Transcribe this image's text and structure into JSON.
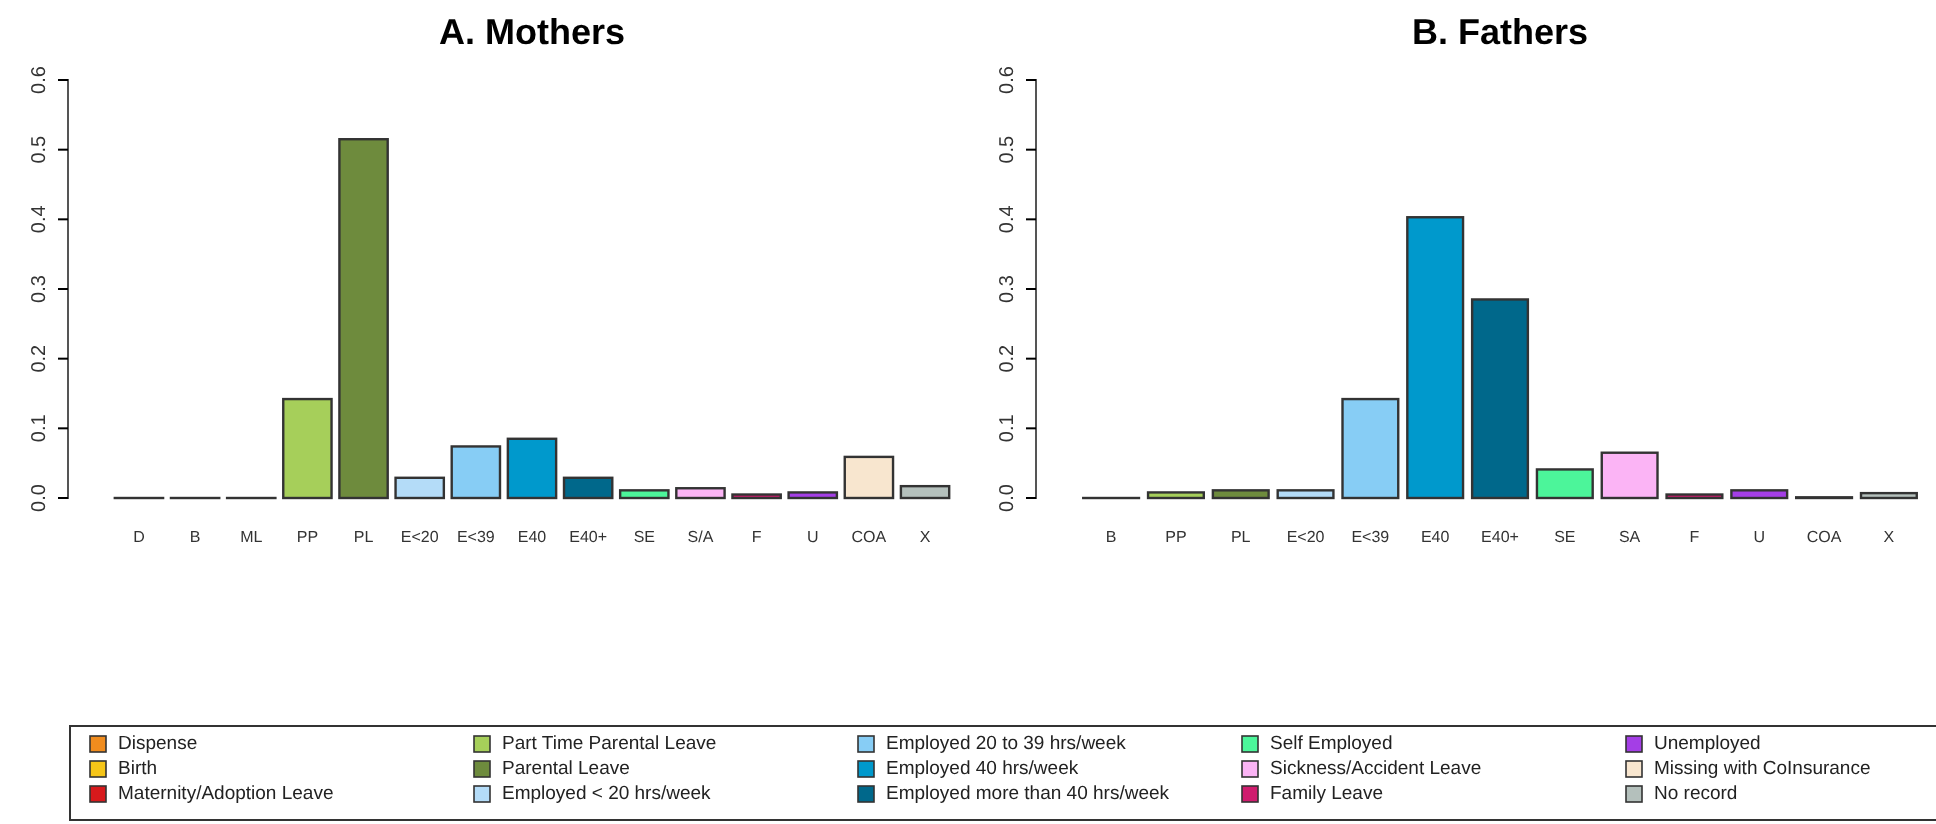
{
  "chart_data": [
    {
      "type": "bar",
      "title": "A. Mothers",
      "categories": [
        "D",
        "B",
        "ML",
        "PP",
        "PL",
        "E<20",
        "E<39",
        "E40",
        "E40+",
        "SE",
        "S/A",
        "F",
        "U",
        "COA",
        "X"
      ],
      "stacked": true,
      "legend": "bottom",
      "ylim": [
        0,
        0.6
      ],
      "yticks": [
        {
          "value": 0,
          "label": "0.0"
        },
        {
          "value": 0.1,
          "label": "0.1"
        },
        {
          "value": 0.2,
          "label": "0.2"
        },
        {
          "value": 0.3,
          "label": "0.3"
        },
        {
          "value": 0.4,
          "label": "0.4"
        },
        {
          "value": 0.5,
          "label": "0.5"
        },
        {
          "value": 0.6,
          "label": "0.6"
        }
      ],
      "grid": false,
      "series": [
        {
          "name": "Dispense",
          "color": "#f08c1e",
          "values": [
            0,
            null,
            null,
            null,
            null,
            null,
            null,
            null,
            null,
            null,
            null,
            null,
            null,
            null,
            null
          ]
        },
        {
          "name": "Birth",
          "color": "#f5c518",
          "values": [
            null,
            0,
            null,
            null,
            null,
            null,
            null,
            null,
            null,
            null,
            null,
            null,
            null,
            null,
            null
          ]
        },
        {
          "name": "Maternity/Adoption Leave",
          "color": "#d7191c",
          "values": [
            null,
            null,
            0,
            null,
            null,
            null,
            null,
            null,
            null,
            null,
            null,
            null,
            null,
            null,
            null
          ]
        },
        {
          "name": "Part Time Parental Leave",
          "color": "#a6cf5a",
          "values": [
            null,
            null,
            null,
            0.142,
            null,
            null,
            null,
            null,
            null,
            null,
            null,
            null,
            null,
            null,
            null
          ]
        },
        {
          "name": "Parental Leave",
          "color": "#6e8b3d",
          "values": [
            null,
            null,
            null,
            null,
            0.515,
            null,
            null,
            null,
            null,
            null,
            null,
            null,
            null,
            null,
            null
          ]
        },
        {
          "name": "Employed < 20 hrs/week",
          "color": "#b4dcf8",
          "values": [
            null,
            null,
            null,
            null,
            null,
            0.029,
            null,
            null,
            null,
            null,
            null,
            null,
            null,
            null,
            null
          ]
        },
        {
          "name": "Employed 20 to 39 hrs/week",
          "color": "#87cdf5",
          "values": [
            null,
            null,
            null,
            null,
            null,
            null,
            0.074,
            null,
            null,
            null,
            null,
            null,
            null,
            null,
            null
          ]
        },
        {
          "name": "Employed 40 hrs/week",
          "color": "#0099cc",
          "values": [
            null,
            null,
            null,
            null,
            null,
            null,
            null,
            0.085,
            null,
            null,
            null,
            null,
            null,
            null,
            null
          ]
        },
        {
          "name": "Employed more than 40 hrs/week",
          "color": "#00688b",
          "values": [
            null,
            null,
            null,
            null,
            null,
            null,
            null,
            null,
            0.029,
            null,
            null,
            null,
            null,
            null,
            null
          ]
        },
        {
          "name": "Self Employed",
          "color": "#4cf59a",
          "values": [
            null,
            null,
            null,
            null,
            null,
            null,
            null,
            null,
            null,
            0.011,
            null,
            null,
            null,
            null,
            null
          ]
        },
        {
          "name": "Sickness/Accident Leave",
          "color": "#fbb4f5",
          "values": [
            null,
            null,
            null,
            null,
            null,
            null,
            null,
            null,
            null,
            null,
            0.014,
            null,
            null,
            null,
            null
          ]
        },
        {
          "name": "Family Leave",
          "color": "#d01c6e",
          "values": [
            null,
            null,
            null,
            null,
            null,
            null,
            null,
            null,
            null,
            null,
            null,
            0.005,
            null,
            null,
            null
          ]
        },
        {
          "name": "Unemployed",
          "color": "#a43ee6",
          "values": [
            null,
            null,
            null,
            null,
            null,
            null,
            null,
            null,
            null,
            null,
            null,
            null,
            0.008,
            null,
            null
          ]
        },
        {
          "name": "Missing with CoInsurance",
          "color": "#f8e6cf",
          "values": [
            null,
            null,
            null,
            null,
            null,
            null,
            null,
            null,
            null,
            null,
            null,
            null,
            null,
            0.059,
            null
          ]
        },
        {
          "name": "No record",
          "color": "#b4c0bc",
          "values": [
            null,
            null,
            null,
            null,
            null,
            null,
            null,
            null,
            null,
            null,
            null,
            null,
            null,
            null,
            0.017
          ]
        }
      ]
    },
    {
      "type": "bar",
      "title": "B. Fathers",
      "categories": [
        "B",
        "PP",
        "PL",
        "E<20",
        "E<39",
        "E40",
        "E40+",
        "SE",
        "SA",
        "F",
        "U",
        "COA",
        "X"
      ],
      "ylim": [
        0,
        0.6
      ],
      "yticks": [
        {
          "value": 0,
          "label": "0.0"
        },
        {
          "value": 0.1,
          "label": "0.1"
        },
        {
          "value": 0.2,
          "label": "0.2"
        },
        {
          "value": 0.3,
          "label": "0.3"
        },
        {
          "value": 0.4,
          "label": "0.4"
        },
        {
          "value": 0.5,
          "label": "0.5"
        },
        {
          "value": 0.6,
          "label": "0.6"
        }
      ],
      "grid": false,
      "values": [
        0,
        0.008,
        0.011,
        0.011,
        0.142,
        0.403,
        0.285,
        0.041,
        0.065,
        0.005,
        0.011,
        0.001,
        0.007
      ],
      "colors": [
        "#f5c518",
        "#a6cf5a",
        "#6e8b3d",
        "#b4dcf8",
        "#87cdf5",
        "#0099cc",
        "#00688b",
        "#4cf59a",
        "#fbb4f5",
        "#d01c6e",
        "#a43ee6",
        "#f8e6cf",
        "#b4c0bc"
      ]
    }
  ]
}
